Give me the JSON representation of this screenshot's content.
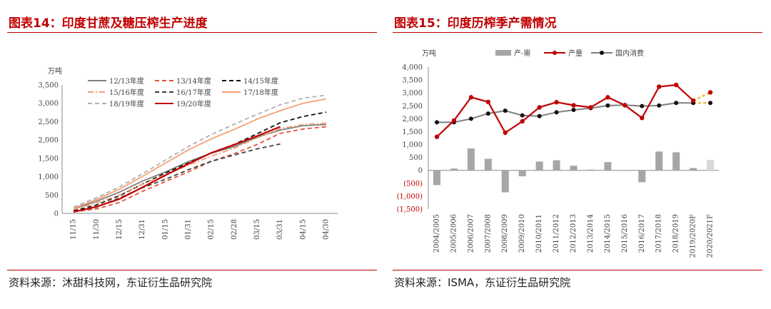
{
  "left": {
    "title": "图表14：印度甘蔗及糖压榨生产进度",
    "source": "资料来源：沐甜科技网，东证衍生品研究院"
  },
  "right": {
    "title": "图表15：印度历榨季产需情况",
    "source": "资料来源：ISMA，东证衍生品研究院"
  },
  "chart_data": [
    {
      "type": "line",
      "unit_label": "万吨",
      "x": [
        "11/15",
        "11/30",
        "12/15",
        "12/31",
        "01/15",
        "01/31",
        "02/15",
        "02/28",
        "03/15",
        "03/31",
        "04/15",
        "04/30"
      ],
      "ylim": [
        0,
        3500
      ],
      "yticks": [
        "0",
        "500",
        "1,000",
        "1,500",
        "2,000",
        "2,500",
        "3,000",
        "3,500"
      ],
      "grid": false,
      "legend": "top-left",
      "series": [
        {
          "name": "12/13年度",
          "color": "#808080",
          "dash": "solid",
          "values": [
            120,
            330,
            580,
            880,
            1130,
            1410,
            1640,
            1820,
            2080,
            2270,
            2390,
            2420
          ]
        },
        {
          "name": "13/14年度",
          "color": "#e8503a",
          "dash": "dashed",
          "values": [
            40,
            120,
            300,
            600,
            870,
            1130,
            1420,
            1630,
            1880,
            2180,
            2300,
            2360
          ]
        },
        {
          "name": "14/15年度",
          "color": "#111111",
          "dash": "dashed",
          "values": [
            70,
            230,
            480,
            800,
            1100,
            1370,
            1650,
            1880,
            2170,
            2470,
            2640,
            2760
          ]
        },
        {
          "name": "15/16年度",
          "color": "#f0a070",
          "dash": "dashdot",
          "values": [
            110,
            280,
            500,
            800,
            1060,
            1310,
            1560,
            1780,
            2060,
            2310,
            2420,
            2460
          ]
        },
        {
          "name": "16/17年度",
          "color": "#404040",
          "dash": "dashed",
          "values": [
            50,
            170,
            420,
            700,
            930,
            1190,
            1420,
            1590,
            1760,
            1890,
            null,
            null
          ]
        },
        {
          "name": "17/18年度",
          "color": "#f4a070",
          "dash": "solid",
          "values": [
            140,
            380,
            660,
            1010,
            1370,
            1730,
            2030,
            2290,
            2570,
            2800,
            3000,
            3120
          ]
        },
        {
          "name": "18/19年度",
          "color": "#b0b0b0",
          "dash": "dashed",
          "values": [
            170,
            430,
            720,
            1080,
            1450,
            1820,
            2150,
            2430,
            2700,
            2960,
            3140,
            3220
          ]
        },
        {
          "name": "19/20年度",
          "color": "#c00000",
          "dash": "solid",
          "values": [
            40,
            180,
            390,
            710,
            1040,
            1350,
            1650,
            1870,
            2110,
            2360,
            null,
            null
          ]
        }
      ]
    },
    {
      "type": "bar+line",
      "unit_label": "万吨",
      "categories": [
        "2004/2005",
        "2005/2006",
        "2006/2007",
        "2007/2008",
        "2008/2009",
        "2009/2010",
        "2010/2011",
        "2011/2012",
        "2012/2013",
        "2013/2014",
        "2014/2015",
        "2015/2016",
        "2016/2017",
        "2017/2018",
        "2018/2019",
        "2019/2020F",
        "2020/2021F"
      ],
      "ylim": [
        -1500,
        4000
      ],
      "yticks": [
        "(1,500)",
        "(1,000)",
        "(500)",
        "0",
        "500",
        "1,000",
        "1,500",
        "2,000",
        "2,500",
        "3,000",
        "3,500",
        "4,000"
      ],
      "grid": false,
      "legend": "top",
      "series": [
        {
          "name": "产-需",
          "type": "bar",
          "color": "#a6a6a6",
          "values": [
            -570,
            70,
            850,
            450,
            -850,
            -230,
            340,
            390,
            180,
            30,
            320,
            -10,
            -460,
            730,
            700,
            90,
            410
          ]
        },
        {
          "name": "产量",
          "type": "line",
          "color": "#c00000",
          "values": [
            1300,
            1930,
            2830,
            2650,
            1460,
            1900,
            2440,
            2640,
            2520,
            2440,
            2830,
            2520,
            2030,
            3240,
            3310,
            2700,
            3020
          ]
        },
        {
          "name": "国内消费",
          "type": "line",
          "color": "#808080",
          "values": [
            1860,
            1860,
            2000,
            2200,
            2310,
            2130,
            2100,
            2250,
            2340,
            2410,
            2510,
            2530,
            2490,
            2510,
            2610,
            2610,
            2610
          ]
        }
      ],
      "forecast_color": "#f0b020"
    }
  ]
}
